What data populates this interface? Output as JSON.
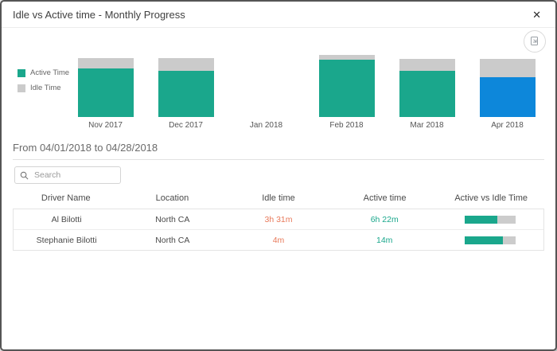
{
  "dialog": {
    "title": "Idle vs Active time - Monthly Progress",
    "close_glyph": "✕"
  },
  "colors": {
    "active": "#1aa78c",
    "idle": "#cbcbcb",
    "selected_month": "#0d87da",
    "idle_text": "#e8795a",
    "active_text": "#1aa78c",
    "progress_track": "#cccccc"
  },
  "chart_data": {
    "type": "bar",
    "stacked": true,
    "title": "Idle vs Active time - Monthly Progress",
    "categories": [
      "Nov 2017",
      "Dec 2017",
      "Jan 2018",
      "Feb 2018",
      "Mar 2018",
      "Apr 2018"
    ],
    "series": [
      {
        "name": "Active Time",
        "values": [
          78,
          74,
          0,
          92,
          74,
          64
        ]
      },
      {
        "name": "Idle Time",
        "values": [
          17,
          21,
          0,
          8,
          19,
          29
        ]
      }
    ],
    "selected_category": "Apr 2018",
    "legend_position": "left",
    "xlabel": "",
    "ylabel": "",
    "ylim": [
      0,
      100
    ],
    "unit": "estimated % of plot height (no axis labels shown)"
  },
  "period": {
    "label": "From 04/01/2018 to 04/28/2018"
  },
  "search": {
    "placeholder": "Search"
  },
  "table": {
    "columns": [
      "Driver Name",
      "Location",
      "Idle time",
      "Active time",
      "Active vs Idle Time"
    ],
    "rows": [
      {
        "driver": "Al Bilotti",
        "location": "North CA",
        "idle": "3h 31m",
        "active": "6h 22m",
        "active_pct": 64
      },
      {
        "driver": "Stephanie Bilotti",
        "location": "North CA",
        "idle": "4m",
        "active": "14m",
        "active_pct": 74
      }
    ]
  }
}
